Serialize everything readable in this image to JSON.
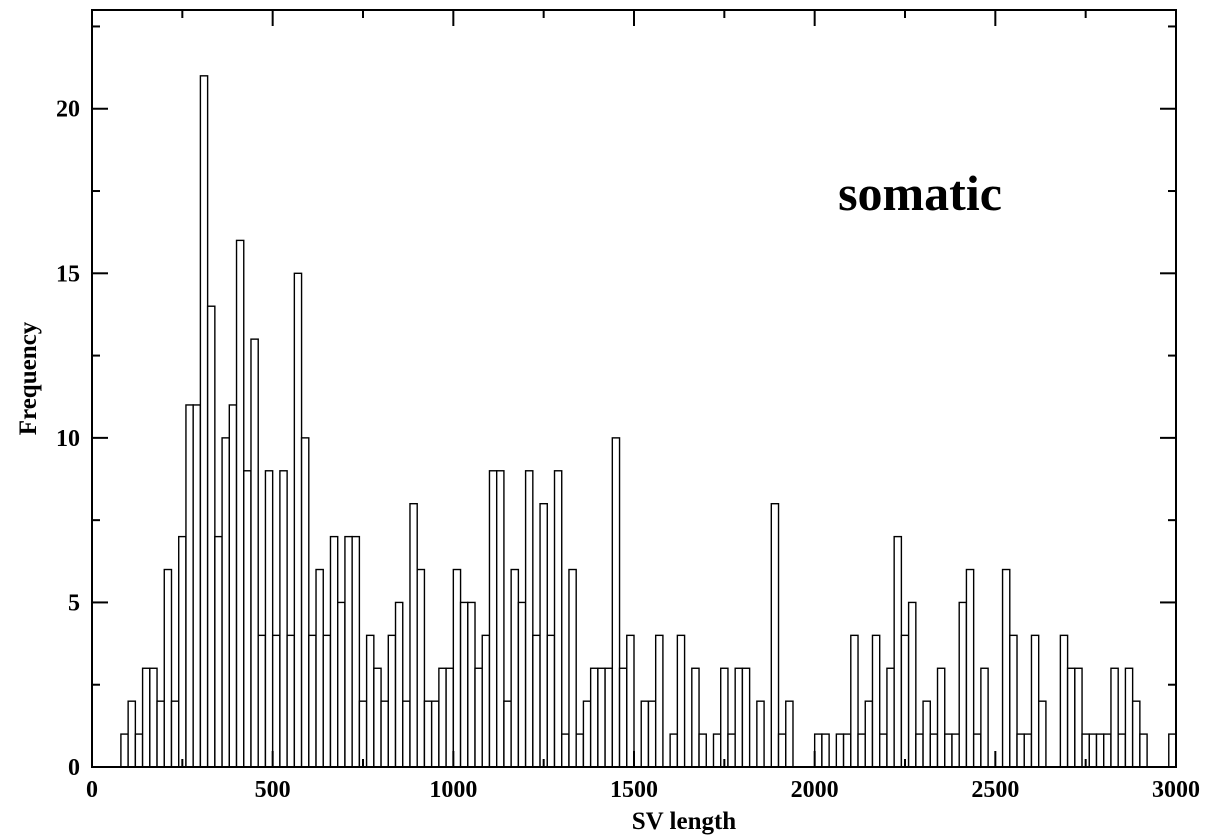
{
  "chart_data": {
    "type": "bar",
    "subtype": "histogram",
    "title": "",
    "xlabel": "SV length",
    "ylabel": "Frequency",
    "annotation": "somatic",
    "xlim": [
      0,
      3000
    ],
    "ylim": [
      0,
      23
    ],
    "x_ticks": [
      0,
      500,
      1000,
      1500,
      2000,
      2500,
      3000
    ],
    "y_ticks": [
      0,
      5,
      10,
      15,
      20
    ],
    "bin_width": 20,
    "bin_starts": [
      80,
      100,
      120,
      140,
      160,
      180,
      200,
      220,
      240,
      260,
      280,
      300,
      320,
      340,
      360,
      380,
      400,
      420,
      440,
      460,
      480,
      500,
      520,
      540,
      560,
      580,
      600,
      620,
      640,
      660,
      680,
      700,
      720,
      740,
      760,
      780,
      800,
      820,
      840,
      860,
      880,
      900,
      920,
      940,
      960,
      980,
      1000,
      1020,
      1040,
      1060,
      1080,
      1100,
      1120,
      1140,
      1160,
      1180,
      1200,
      1220,
      1240,
      1260,
      1280,
      1300,
      1320,
      1340,
      1360,
      1380,
      1400,
      1420,
      1440,
      1460,
      1480,
      1500,
      1520,
      1540,
      1560,
      1580,
      1600,
      1620,
      1640,
      1660,
      1680,
      1700,
      1720,
      1740,
      1760,
      1780,
      1800,
      1820,
      1840,
      1860,
      1880,
      1900,
      1920,
      1940,
      1960,
      1980,
      2000,
      2020,
      2040,
      2060,
      2080,
      2100,
      2120,
      2140,
      2160,
      2180,
      2200,
      2220,
      2240,
      2260,
      2280,
      2300,
      2320,
      2340,
      2360,
      2380,
      2400,
      2420,
      2440,
      2460,
      2480,
      2500,
      2520,
      2540,
      2560,
      2580,
      2600,
      2620,
      2640,
      2660,
      2680,
      2700,
      2720,
      2740,
      2760,
      2780,
      2800,
      2820,
      2840,
      2860,
      2880,
      2900,
      2920,
      2940,
      2960,
      2980
    ],
    "values": [
      1,
      2,
      1,
      3,
      3,
      2,
      6,
      2,
      7,
      11,
      11,
      21,
      14,
      7,
      10,
      11,
      16,
      9,
      13,
      4,
      9,
      4,
      9,
      4,
      15,
      10,
      4,
      6,
      4,
      7,
      5,
      7,
      7,
      2,
      4,
      3,
      2,
      4,
      5,
      2,
      8,
      6,
      2,
      2,
      3,
      3,
      6,
      5,
      5,
      3,
      4,
      9,
      9,
      2,
      6,
      5,
      9,
      4,
      8,
      4,
      9,
      1,
      6,
      1,
      2,
      3,
      3,
      3,
      10,
      3,
      4,
      0,
      2,
      2,
      4,
      0,
      1,
      4,
      0,
      3,
      1,
      0,
      1,
      3,
      1,
      3,
      3,
      0,
      2,
      0,
      8,
      1,
      2,
      0,
      0,
      0,
      1,
      1,
      0,
      1,
      1,
      4,
      1,
      2,
      4,
      1,
      3,
      7,
      4,
      5,
      1,
      2,
      1,
      3,
      1,
      1,
      5,
      6,
      1,
      3,
      0,
      0,
      6,
      4,
      1,
      1,
      4,
      2,
      0,
      0,
      4,
      3,
      3,
      1,
      1,
      1,
      1,
      3,
      1,
      3,
      2,
      1,
      0,
      0,
      0,
      1
    ]
  }
}
